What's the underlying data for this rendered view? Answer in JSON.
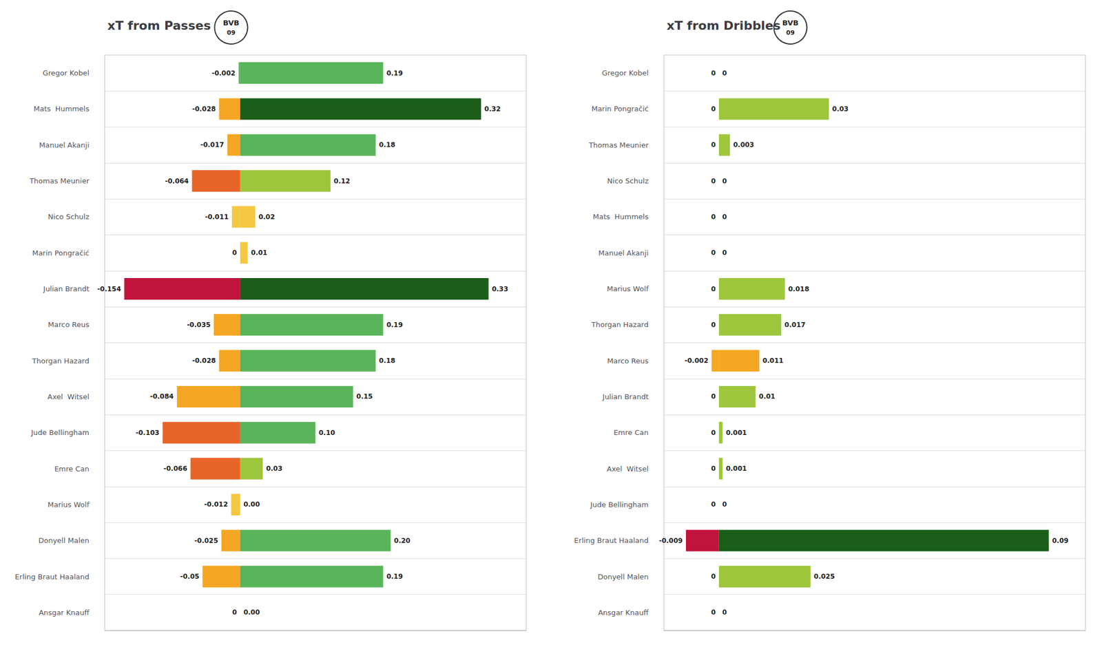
{
  "chart_data": [
    {
      "type": "bar",
      "orientation": "horizontal",
      "title": "xT from Passes",
      "annotations": [
        "BVB",
        "09"
      ],
      "categories": [
        "Gregor Kobel",
        "Mats  Hummels",
        "Manuel Akanji",
        "Thomas Meunier",
        "Nico Schulz",
        "Marin Pongračić",
        "Julian Brandt",
        "Marco Reus",
        "Thorgan Hazard",
        "Axel  Witsel",
        "Jude Bellingham",
        "Emre Can",
        "Marius Wolf",
        "Donyell Malen",
        "Erling Braut Haaland",
        "Ansgar Knauff"
      ],
      "series": [
        {
          "values": [
            -0.002,
            -0.028,
            -0.017,
            -0.064,
            -0.011,
            0.0,
            -0.154,
            -0.035,
            -0.028,
            -0.084,
            -0.103,
            -0.066,
            -0.012,
            -0.025,
            -0.05,
            0.0
          ],
          "value_labels": [
            "-0.002",
            "-0.028",
            "-0.017",
            "-0.064",
            "-0.011",
            "0",
            "-0.154",
            "-0.035",
            "-0.028",
            "-0.084",
            "-0.103",
            "-0.066",
            "-0.012",
            "-0.025",
            "-0.05",
            "0"
          ],
          "colors": [
            "#5ab55a",
            "#f5a623",
            "#f5a623",
            "#e8652a",
            "#f5c842",
            "#ffffff",
            "#c0143c",
            "#f5a623",
            "#f5a623",
            "#f5a623",
            "#e8652a",
            "#e8652a",
            "#f5c842",
            "#f5a623",
            "#f5a623",
            "#ffffff"
          ]
        },
        {
          "values": [
            0.19,
            0.32,
            0.18,
            0.12,
            0.02,
            0.01,
            0.33,
            0.19,
            0.18,
            0.15,
            0.1,
            0.03,
            0.0,
            0.2,
            0.19,
            0.0
          ],
          "value_labels": [
            "0.19",
            "0.32",
            "0.18",
            "0.12",
            "0.02",
            "0.01",
            "0.33",
            "0.19",
            "0.18",
            "0.15",
            "0.10",
            "0.03",
            "0.00",
            "0.20",
            "0.19",
            "0.00"
          ],
          "colors": [
            "#5ab55a",
            "#1a5e1a",
            "#5ab55a",
            "#9dc63d",
            "#f5c842",
            "#f5c842",
            "#1a5e1a",
            "#5ab55a",
            "#5ab55a",
            "#5ab55a",
            "#5ab55a",
            "#9dc63d",
            "#f5c842",
            "#5ab55a",
            "#5ab55a",
            "#ffffff"
          ]
        }
      ],
      "xlim": [
        -0.18,
        0.38
      ],
      "data_labels": true,
      "tick_labels": "y",
      "grid": true
    },
    {
      "type": "bar",
      "orientation": "horizontal",
      "title": "xT from Dribbles",
      "annotations": [
        "BVB",
        "09"
      ],
      "categories": [
        "Gregor Kobel",
        "Marin Pongračić",
        "Thomas Meunier",
        "Nico Schulz",
        "Mats  Hummels",
        "Manuel Akanji",
        "Marius Wolf",
        "Thorgan Hazard",
        "Marco Reus",
        "Julian Brandt",
        "Emre Can",
        "Axel  Witsel",
        "Jude Bellingham",
        "Erling Braut Haaland",
        "Donyell Malen",
        "Ansgar Knauff"
      ],
      "series": [
        {
          "values": [
            0.0,
            0.0,
            0.0,
            0.0,
            0.0,
            0.0,
            0.0,
            0.0,
            -0.002,
            0.0,
            0.0,
            0.0,
            0.0,
            -0.009,
            0.0,
            0.0
          ],
          "value_labels": [
            "0",
            "0",
            "0",
            "0",
            "0",
            "0",
            "0",
            "0",
            "-0.002",
            "0",
            "0",
            "0",
            "0",
            "-0.009",
            "0",
            "0"
          ],
          "colors": [
            "#ffffff",
            "#ffffff",
            "#ffffff",
            "#ffffff",
            "#ffffff",
            "#ffffff",
            "#ffffff",
            "#ffffff",
            "#f5a623",
            "#ffffff",
            "#ffffff",
            "#ffffff",
            "#ffffff",
            "#c0143c",
            "#ffffff",
            "#ffffff"
          ]
        },
        {
          "values": [
            0.0,
            0.03,
            0.003,
            0.0,
            0.0,
            0.0,
            0.018,
            0.017,
            0.011,
            0.01,
            0.001,
            0.001,
            0.0,
            0.09,
            0.025,
            0.0
          ],
          "value_labels": [
            "0",
            "0.03",
            "0.003",
            "0",
            "0",
            "0",
            "0.018",
            "0.017",
            "0.011",
            "0.01",
            "0.001",
            "0.001",
            "0",
            "0.09",
            "0.025",
            "0"
          ],
          "colors": [
            "#ffffff",
            "#9dc63d",
            "#9dc63d",
            "#ffffff",
            "#ffffff",
            "#ffffff",
            "#9dc63d",
            "#9dc63d",
            "#f5a623",
            "#9dc63d",
            "#9dc63d",
            "#9dc63d",
            "#ffffff",
            "#1a5e1a",
            "#9dc63d",
            "#ffffff"
          ]
        }
      ],
      "xlim": [
        -0.015,
        0.1
      ],
      "data_labels": true,
      "tick_labels": "y",
      "grid": true
    }
  ]
}
